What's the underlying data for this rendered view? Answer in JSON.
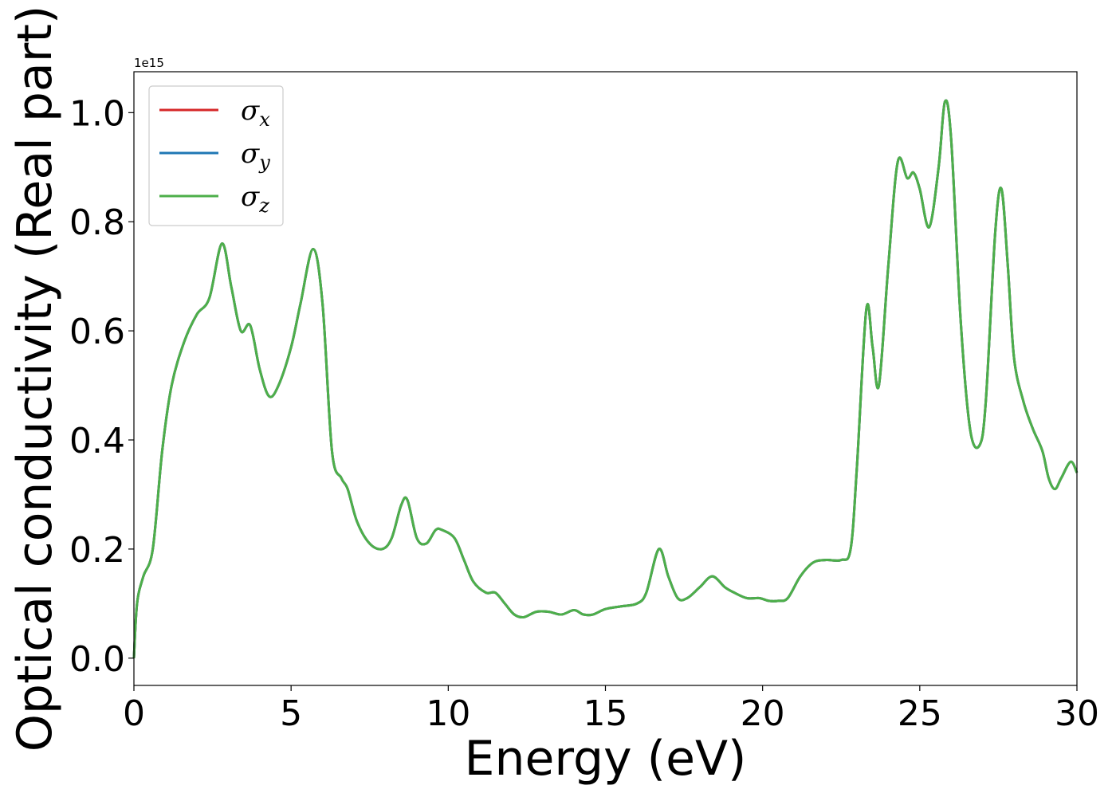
{
  "chart_data": {
    "type": "line",
    "xlabel": "Energy (eV)",
    "ylabel": "Optical conductivity (Real part)",
    "y_offset_text": "1e15",
    "xlim": [
      0,
      30
    ],
    "ylim": [
      -0.05,
      1.075
    ],
    "xticks": [
      0,
      5,
      10,
      15,
      20,
      25,
      30
    ],
    "xtick_labels": [
      "0",
      "5",
      "10",
      "15",
      "20",
      "25",
      "30"
    ],
    "yticks": [
      0.0,
      0.2,
      0.4,
      0.6,
      0.8,
      1.0
    ],
    "ytick_labels": [
      "0.0",
      "0.2",
      "0.4",
      "0.6",
      "0.8",
      "1.0"
    ],
    "grid": false,
    "legend_position": "top-left",
    "x": [
      0,
      0.1,
      0.3,
      0.6,
      0.9,
      1.2,
      1.6,
      2.0,
      2.4,
      2.8,
      3.1,
      3.4,
      3.7,
      4.0,
      4.3,
      4.6,
      5.0,
      5.3,
      5.7,
      6.0,
      6.3,
      6.6,
      6.8,
      7.1,
      7.5,
      7.9,
      8.2,
      8.5,
      8.7,
      9.0,
      9.3,
      9.6,
      9.8,
      10.2,
      10.5,
      10.8,
      11.2,
      11.5,
      11.8,
      12.1,
      12.4,
      12.8,
      13.2,
      13.6,
      14.0,
      14.3,
      14.6,
      15.0,
      15.5,
      16.0,
      16.3,
      16.7,
      17.0,
      17.3,
      17.6,
      18.0,
      18.4,
      18.8,
      19.1,
      19.5,
      19.9,
      20.2,
      20.5,
      20.8,
      21.2,
      21.6,
      22.0,
      22.5,
      22.8,
      23.0,
      23.3,
      23.5,
      23.7,
      24.0,
      24.3,
      24.6,
      24.8,
      25.0,
      25.3,
      25.6,
      25.8,
      26.0,
      26.3,
      26.6,
      26.9,
      27.1,
      27.4,
      27.6,
      27.8,
      28.0,
      28.3,
      28.6,
      28.9,
      29.1,
      29.3,
      29.5,
      29.8,
      30.0
    ],
    "series": [
      {
        "name": "σx",
        "color": "#d62728",
        "y": [
          0.0,
          0.1,
          0.15,
          0.2,
          0.38,
          0.5,
          0.58,
          0.63,
          0.66,
          0.76,
          0.68,
          0.6,
          0.61,
          0.53,
          0.48,
          0.5,
          0.57,
          0.65,
          0.75,
          0.65,
          0.38,
          0.33,
          0.31,
          0.25,
          0.21,
          0.2,
          0.22,
          0.28,
          0.29,
          0.22,
          0.21,
          0.235,
          0.235,
          0.22,
          0.18,
          0.14,
          0.12,
          0.12,
          0.1,
          0.08,
          0.075,
          0.085,
          0.085,
          0.08,
          0.088,
          0.08,
          0.08,
          0.09,
          0.095,
          0.1,
          0.12,
          0.2,
          0.15,
          0.11,
          0.11,
          0.13,
          0.15,
          0.13,
          0.12,
          0.11,
          0.11,
          0.105,
          0.105,
          0.11,
          0.15,
          0.175,
          0.18,
          0.18,
          0.2,
          0.35,
          0.64,
          0.57,
          0.5,
          0.72,
          0.91,
          0.88,
          0.89,
          0.86,
          0.79,
          0.9,
          1.02,
          0.95,
          0.62,
          0.42,
          0.39,
          0.47,
          0.78,
          0.86,
          0.72,
          0.55,
          0.47,
          0.42,
          0.38,
          0.33,
          0.31,
          0.33,
          0.36,
          0.34
        ]
      },
      {
        "name": "σy",
        "color": "#1f77b4",
        "y": [
          0.0,
          0.1,
          0.15,
          0.2,
          0.38,
          0.5,
          0.58,
          0.63,
          0.66,
          0.76,
          0.68,
          0.6,
          0.61,
          0.53,
          0.48,
          0.5,
          0.57,
          0.65,
          0.75,
          0.65,
          0.38,
          0.33,
          0.31,
          0.25,
          0.21,
          0.2,
          0.22,
          0.28,
          0.29,
          0.22,
          0.21,
          0.235,
          0.235,
          0.22,
          0.18,
          0.14,
          0.12,
          0.12,
          0.1,
          0.08,
          0.075,
          0.085,
          0.085,
          0.08,
          0.088,
          0.08,
          0.08,
          0.09,
          0.095,
          0.1,
          0.12,
          0.2,
          0.15,
          0.11,
          0.11,
          0.13,
          0.15,
          0.13,
          0.12,
          0.11,
          0.11,
          0.105,
          0.105,
          0.11,
          0.15,
          0.175,
          0.18,
          0.18,
          0.2,
          0.35,
          0.64,
          0.57,
          0.5,
          0.72,
          0.91,
          0.88,
          0.89,
          0.86,
          0.79,
          0.9,
          1.02,
          0.95,
          0.62,
          0.42,
          0.39,
          0.47,
          0.78,
          0.86,
          0.72,
          0.55,
          0.47,
          0.42,
          0.38,
          0.33,
          0.31,
          0.33,
          0.36,
          0.34
        ]
      },
      {
        "name": "σz",
        "color": "#4daf4a",
        "y": [
          0.0,
          0.1,
          0.15,
          0.2,
          0.38,
          0.5,
          0.58,
          0.63,
          0.66,
          0.76,
          0.68,
          0.6,
          0.61,
          0.53,
          0.48,
          0.5,
          0.57,
          0.65,
          0.75,
          0.65,
          0.38,
          0.33,
          0.31,
          0.25,
          0.21,
          0.2,
          0.22,
          0.28,
          0.29,
          0.22,
          0.21,
          0.235,
          0.235,
          0.22,
          0.18,
          0.14,
          0.12,
          0.12,
          0.1,
          0.08,
          0.075,
          0.085,
          0.085,
          0.08,
          0.088,
          0.08,
          0.08,
          0.09,
          0.095,
          0.1,
          0.12,
          0.2,
          0.15,
          0.11,
          0.11,
          0.13,
          0.15,
          0.13,
          0.12,
          0.11,
          0.11,
          0.105,
          0.105,
          0.11,
          0.15,
          0.175,
          0.18,
          0.18,
          0.2,
          0.35,
          0.64,
          0.57,
          0.5,
          0.72,
          0.91,
          0.88,
          0.89,
          0.86,
          0.79,
          0.9,
          1.02,
          0.95,
          0.62,
          0.42,
          0.39,
          0.47,
          0.78,
          0.86,
          0.72,
          0.55,
          0.47,
          0.42,
          0.38,
          0.33,
          0.31,
          0.33,
          0.36,
          0.34
        ]
      }
    ],
    "legend": [
      {
        "symbol": "σ",
        "subscript": "x",
        "color": "#d62728"
      },
      {
        "symbol": "σ",
        "subscript": "y",
        "color": "#1f77b4"
      },
      {
        "symbol": "σ",
        "subscript": "z",
        "color": "#4daf4a"
      }
    ]
  }
}
